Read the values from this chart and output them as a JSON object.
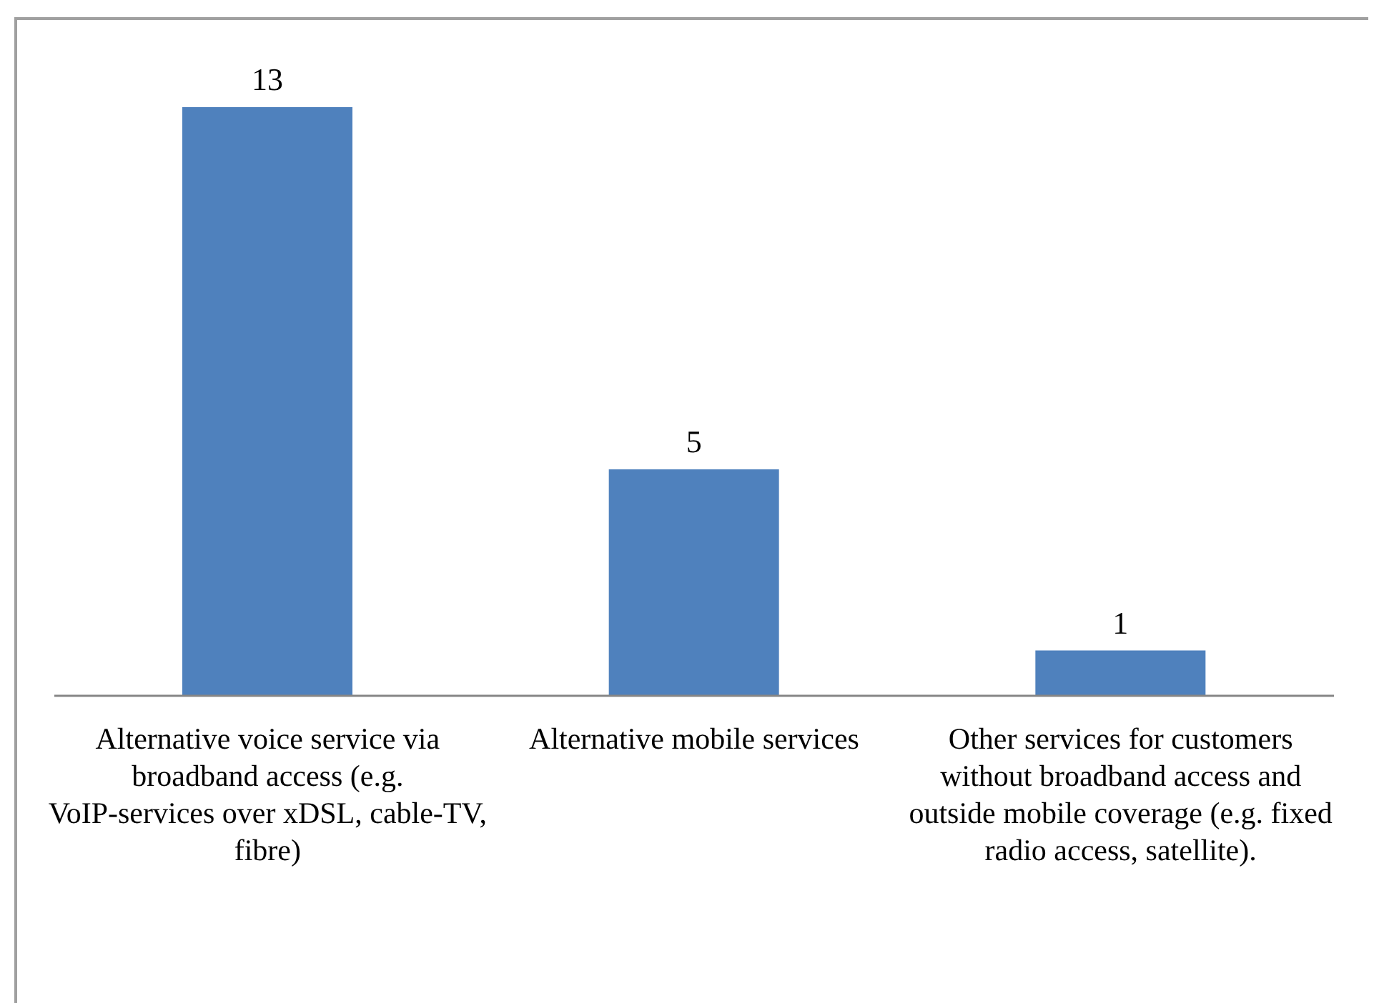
{
  "chart_data": {
    "type": "bar",
    "categories": [
      "Alternative voice service via broadband access (e.g. VoIP-services over xDSL, cable-TV, fibre)",
      "Alternative mobile services",
      "Other services for customers without broadband access and outside mobile coverage (e.g. fixed radio access, satellite)."
    ],
    "values": [
      13,
      5,
      1
    ],
    "color": "#4f81bd",
    "data_labels": true
  }
}
